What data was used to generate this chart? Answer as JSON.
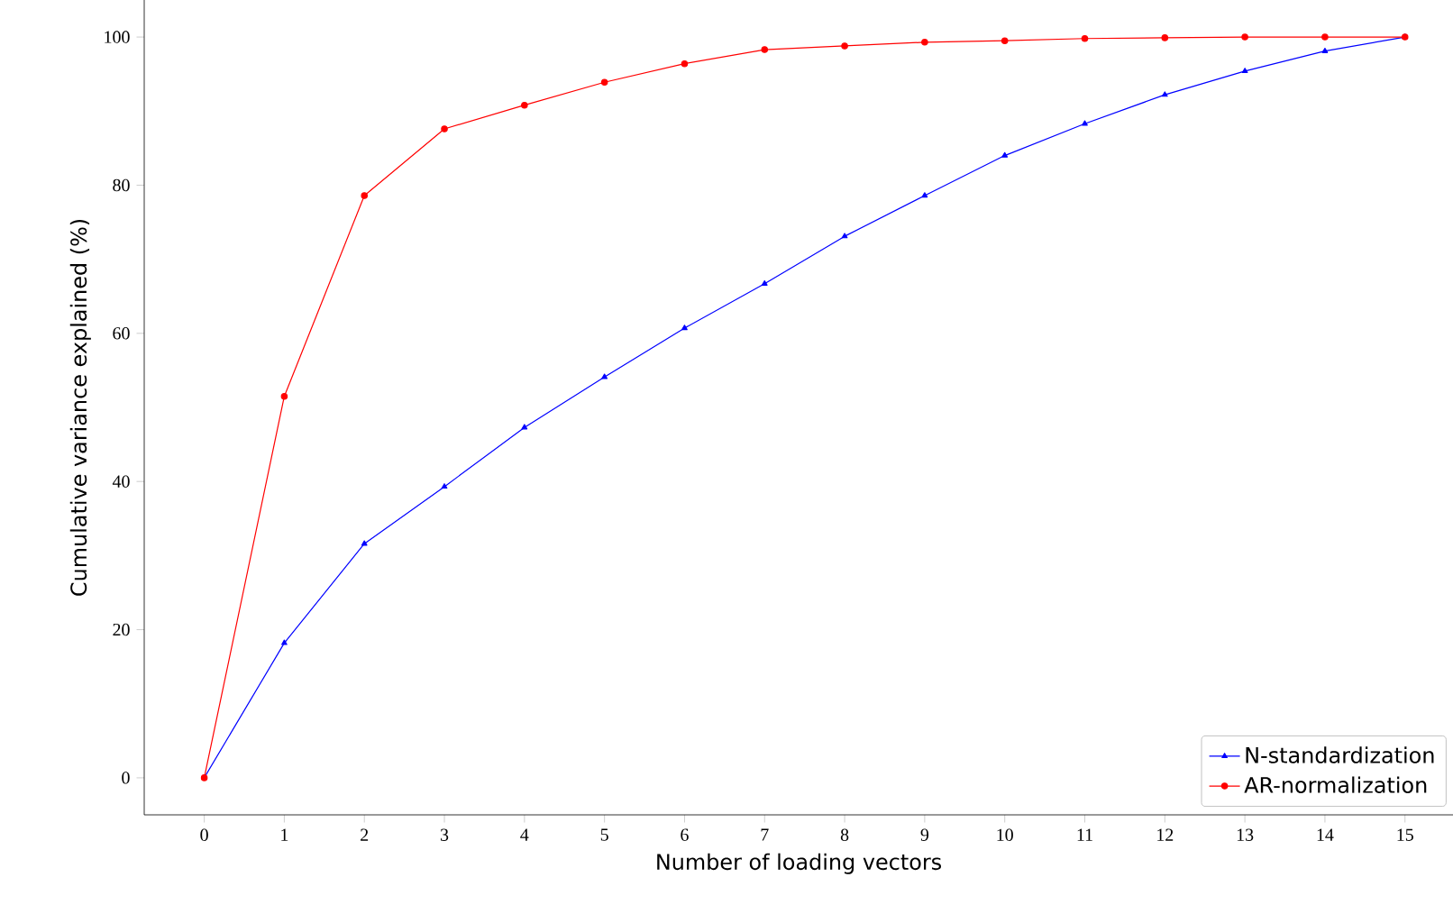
{
  "chart_data": {
    "type": "line",
    "xlabel": "Number of loading vectors",
    "ylabel": "Cumulative variance explained (%)",
    "x": [
      0,
      1,
      2,
      3,
      4,
      5,
      6,
      7,
      8,
      9,
      10,
      11,
      12,
      13,
      14,
      15
    ],
    "xlim": [
      -0.75,
      15.6
    ],
    "ylim": [
      -5,
      105
    ],
    "xticks": [
      0,
      1,
      2,
      3,
      4,
      5,
      6,
      7,
      8,
      9,
      10,
      11,
      12,
      13,
      14,
      15
    ],
    "yticks": [
      0,
      20,
      40,
      60,
      80,
      100
    ],
    "legend": "bottom right",
    "grid": false,
    "line_style": "solid",
    "series": [
      {
        "name": "N-standardization",
        "color": "#0000ff",
        "marker": "triangle",
        "values": [
          0,
          18.2,
          31.6,
          39.3,
          47.3,
          54.1,
          60.7,
          66.7,
          73.1,
          78.6,
          84.0,
          88.3,
          92.2,
          95.4,
          98.1,
          100
        ]
      },
      {
        "name": "AR-normalization",
        "color": "#ff0000",
        "marker": "circle",
        "values": [
          0,
          51.5,
          78.6,
          87.6,
          90.8,
          93.9,
          96.4,
          98.3,
          98.8,
          99.3,
          99.5,
          99.8,
          99.9,
          100,
          100,
          100
        ]
      }
    ]
  }
}
